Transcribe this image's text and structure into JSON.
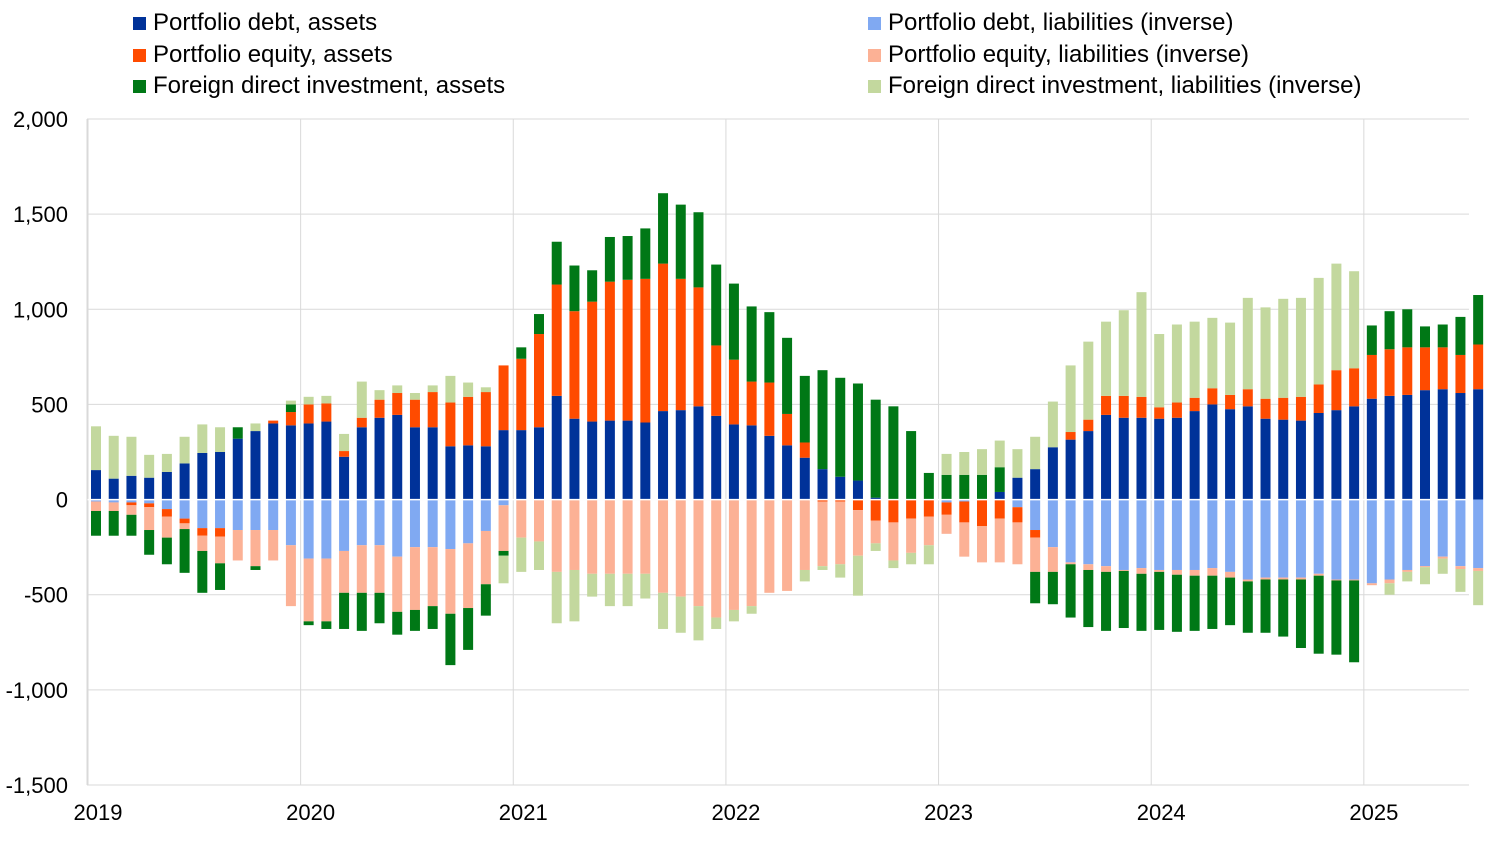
{
  "chart_data": {
    "type": "bar",
    "stacked": true,
    "x_axis_tick_labels": [
      "2019",
      "2020",
      "2021",
      "2022",
      "2023",
      "2024",
      "2025"
    ],
    "y_axis_tick_labels": [
      "2,000",
      "1,500",
      "1,000",
      "500",
      "0",
      "-500",
      "-1,000",
      "-1,500"
    ],
    "ylim": [
      -1500,
      2000
    ],
    "grid": true,
    "legend_position": "top",
    "series": [
      {
        "name": "Portfolio debt, assets",
        "color": "#003299",
        "values": [
          155,
          110,
          125,
          115,
          145,
          190,
          245,
          250,
          320,
          360,
          400,
          390,
          400,
          410,
          225,
          380,
          430,
          445,
          380,
          380,
          280,
          285,
          280,
          365,
          365,
          380,
          545,
          425,
          410,
          415,
          415,
          405,
          465,
          470,
          490,
          440,
          395,
          390,
          335,
          285,
          220,
          160,
          120,
          100,
          10,
          0,
          0,
          0,
          0,
          0,
          0,
          40,
          115,
          160,
          275,
          315,
          360,
          445,
          430,
          430,
          425,
          430,
          465,
          500,
          475,
          490,
          425,
          420,
          415,
          455,
          470,
          490,
          530,
          545,
          550,
          575,
          580,
          560,
          580
        ]
      },
      {
        "name": "Portfolio debt, liabilities (inverse)",
        "color": "#80a9f2",
        "values": [
          -10,
          -15,
          -15,
          -20,
          -50,
          -100,
          -150,
          -150,
          -160,
          -160,
          -160,
          -240,
          -310,
          -310,
          -270,
          -240,
          -240,
          -300,
          -250,
          -250,
          -260,
          -230,
          -165,
          -30,
          0,
          0,
          0,
          0,
          0,
          0,
          0,
          0,
          0,
          0,
          0,
          0,
          0,
          0,
          0,
          0,
          0,
          0,
          0,
          0,
          0,
          0,
          0,
          0,
          -15,
          -10,
          0,
          0,
          -40,
          -160,
          -250,
          -330,
          -340,
          -350,
          -370,
          -360,
          -370,
          -370,
          -370,
          -360,
          -380,
          -420,
          -410,
          -410,
          -410,
          -390,
          -420,
          -420,
          -440,
          -420,
          -370,
          -350,
          -300,
          -350,
          -360
        ]
      },
      {
        "name": "Portfolio equity, assets",
        "color": "#ff4b00",
        "values": [
          0,
          0,
          -15,
          -20,
          -40,
          -25,
          -40,
          -45,
          0,
          0,
          15,
          70,
          100,
          95,
          30,
          50,
          95,
          115,
          145,
          185,
          230,
          255,
          285,
          340,
          375,
          490,
          585,
          565,
          630,
          730,
          740,
          755,
          775,
          690,
          625,
          370,
          340,
          230,
          280,
          165,
          80,
          -10,
          -10,
          -55,
          -110,
          -120,
          -100,
          -90,
          -65,
          -110,
          -140,
          -100,
          -80,
          -40,
          0,
          40,
          60,
          100,
          115,
          110,
          60,
          80,
          70,
          85,
          75,
          90,
          105,
          115,
          125,
          150,
          210,
          200,
          230,
          245,
          250,
          225,
          220,
          200,
          235
        ]
      },
      {
        "name": "Portfolio equity, liabilities (inverse)",
        "color": "#fcb195",
        "values": [
          -50,
          -45,
          -50,
          -120,
          -110,
          -30,
          -80,
          -140,
          -160,
          -190,
          -160,
          -320,
          -330,
          -330,
          -220,
          -250,
          -250,
          -290,
          -330,
          -310,
          -340,
          -340,
          -280,
          -240,
          -200,
          -220,
          -380,
          -370,
          -390,
          -390,
          -390,
          -390,
          -490,
          -510,
          -560,
          -620,
          -580,
          -560,
          -490,
          -480,
          -370,
          -340,
          -330,
          -240,
          -120,
          -200,
          -180,
          -150,
          -100,
          -180,
          -190,
          -230,
          -220,
          -180,
          -130,
          -10,
          -30,
          -30,
          -5,
          -30,
          -10,
          -25,
          -30,
          -40,
          -30,
          -10,
          -10,
          -10,
          -10,
          -10,
          -5,
          -5,
          -10,
          -20,
          -10,
          -5,
          -10,
          -15,
          -15
        ]
      },
      {
        "name": "Foreign direct investment, assets",
        "color": "#007816",
        "values": [
          0,
          0,
          0,
          0,
          0,
          0,
          0,
          0,
          60,
          0,
          0,
          40,
          0,
          0,
          0,
          0,
          0,
          0,
          0,
          0,
          0,
          0,
          0,
          0,
          60,
          105,
          225,
          240,
          165,
          235,
          230,
          265,
          370,
          390,
          395,
          425,
          400,
          395,
          370,
          400,
          350,
          520,
          520,
          510,
          515,
          490,
          360,
          140,
          130,
          130,
          130,
          130,
          0,
          0,
          0,
          0,
          0,
          0,
          0,
          0,
          0,
          0,
          0,
          0,
          0,
          0,
          0,
          0,
          0,
          0,
          0,
          0,
          155,
          200,
          200,
          110,
          120,
          200,
          260
        ]
      },
      {
        "name": "Foreign direct investment, liabilities (inverse)",
        "color": "#c3d89e",
        "values": [
          230,
          225,
          205,
          120,
          95,
          140,
          150,
          130,
          0,
          40,
          0,
          20,
          40,
          40,
          90,
          190,
          50,
          40,
          35,
          35,
          140,
          75,
          25,
          0,
          0,
          0,
          0,
          0,
          0,
          0,
          0,
          0,
          0,
          0,
          0,
          0,
          0,
          0,
          0,
          0,
          0,
          0,
          0,
          0,
          0,
          0,
          0,
          0,
          110,
          120,
          135,
          140,
          150,
          170,
          240,
          350,
          410,
          390,
          450,
          550,
          385,
          410,
          400,
          370,
          380,
          480,
          480,
          520,
          520,
          560,
          560,
          510,
          0,
          0,
          0,
          0,
          0,
          0,
          0
        ]
      },
      {
        "name": "",
        "color": "#007816",
        "values": [
          -130,
          -130,
          -110,
          -130,
          -140,
          -230,
          -220,
          -140,
          0,
          -20,
          0,
          0,
          -20,
          -40,
          -190,
          -200,
          -160,
          -120,
          -110,
          -120,
          -270,
          -220,
          -165,
          -25,
          0,
          0,
          0,
          0,
          0,
          0,
          0,
          0,
          0,
          0,
          0,
          0,
          0,
          0,
          0,
          0,
          0,
          0,
          0,
          0,
          0,
          0,
          0,
          0,
          0,
          0,
          0,
          0,
          0,
          -165,
          -170,
          -280,
          -300,
          -310,
          -300,
          -300,
          -305,
          -300,
          -290,
          -280,
          -250,
          -270,
          -280,
          -300,
          -360,
          -410,
          -390,
          -430,
          0,
          0,
          0,
          0,
          0,
          0,
          0
        ]
      },
      {
        "name": "",
        "color": "#c3d89e",
        "values": [
          0,
          0,
          0,
          0,
          0,
          0,
          0,
          0,
          0,
          0,
          0,
          0,
          0,
          0,
          0,
          0,
          0,
          0,
          0,
          0,
          0,
          0,
          0,
          -145,
          -180,
          -150,
          -270,
          -270,
          -120,
          -170,
          -170,
          -130,
          -190,
          -190,
          -180,
          -60,
          -60,
          -40,
          0,
          0,
          -60,
          -20,
          -70,
          -210,
          -40,
          -40,
          -60,
          -100,
          0,
          0,
          0,
          0,
          0,
          0,
          0,
          0,
          0,
          0,
          0,
          0,
          0,
          0,
          0,
          0,
          0,
          0,
          0,
          0,
          0,
          0,
          0,
          0,
          0,
          -60,
          -50,
          -90,
          -80,
          -120,
          -180
        ]
      }
    ]
  }
}
